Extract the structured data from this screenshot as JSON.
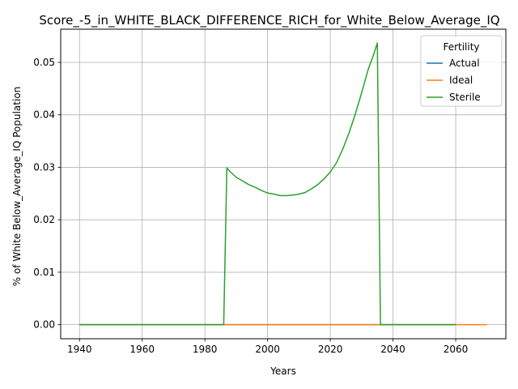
{
  "chart_data": {
    "type": "line",
    "title": "Score_-5_in_WHITE_BLACK_DIFFERENCE_RICH_for_White_Below_Average_IQ",
    "xlabel": "Years",
    "ylabel": "% of White Below_Average_IQ Population",
    "xlim": [
      1934,
      2076
    ],
    "ylim": [
      -0.00268,
      0.05633
    ],
    "xticks": [
      1940,
      1960,
      1980,
      2000,
      2020,
      2040,
      2060
    ],
    "xtick_labels": [
      "1940",
      "1960",
      "1980",
      "2000",
      "2020",
      "2040",
      "2060"
    ],
    "yticks": [
      0.0,
      0.01,
      0.02,
      0.03,
      0.04,
      0.05
    ],
    "ytick_labels": [
      "0.00",
      "0.01",
      "0.02",
      "0.03",
      "0.04",
      "0.05"
    ],
    "grid": true,
    "legend": {
      "title": "Fertility",
      "placement": "upper right"
    },
    "series": [
      {
        "name": "Actual",
        "color": "#1f77b4",
        "x": [
          1940,
          2060
        ],
        "y": [
          0.0,
          0.0
        ]
      },
      {
        "name": "Ideal",
        "color": "#ff7f0e",
        "x": [
          1940,
          2070
        ],
        "y": [
          0.0,
          0.0
        ]
      },
      {
        "name": "Sterile",
        "color": "#2ca02c",
        "x": [
          1940,
          1986,
          1987,
          1988,
          1990,
          1992,
          1994,
          1996,
          1998,
          2000,
          2002,
          2004,
          2006,
          2008,
          2010,
          2012,
          2014,
          2016,
          2018,
          2020,
          2022,
          2024,
          2026,
          2028,
          2030,
          2032,
          2034,
          2035,
          2036,
          2060
        ],
        "y": [
          0.0,
          0.0,
          0.0299,
          0.0292,
          0.0281,
          0.0274,
          0.0267,
          0.0262,
          0.0256,
          0.0251,
          0.0249,
          0.0246,
          0.0246,
          0.0247,
          0.0249,
          0.0252,
          0.0259,
          0.0267,
          0.0278,
          0.0291,
          0.0309,
          0.0335,
          0.0366,
          0.0402,
          0.0442,
          0.0485,
          0.0518,
          0.0537,
          0.0,
          0.0
        ]
      }
    ]
  }
}
